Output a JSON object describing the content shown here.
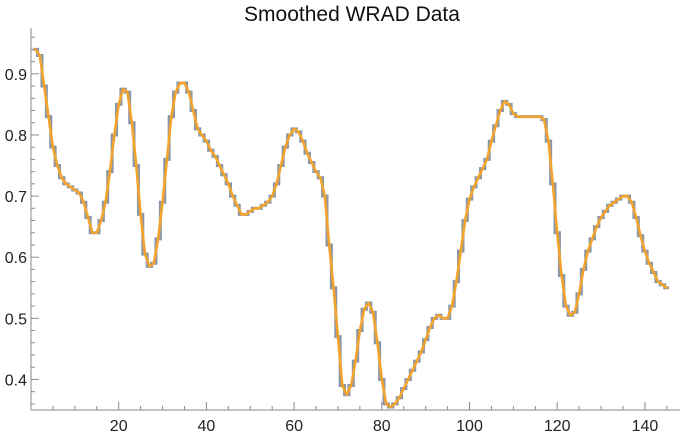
{
  "chart_data": {
    "type": "line",
    "title": "Smoothed WRAD Data",
    "xlabel": "",
    "ylabel": "",
    "xlim": [
      0,
      148
    ],
    "ylim": [
      0.35,
      0.975
    ],
    "x_ticks": [
      20,
      40,
      60,
      80,
      100,
      120,
      140
    ],
    "x_tick_labels": [
      "20",
      "40",
      "60",
      "80",
      "100",
      "120",
      "140"
    ],
    "y_ticks": [
      0.4,
      0.5,
      0.6,
      0.7,
      0.8,
      0.9
    ],
    "y_tick_labels": [
      "0.4",
      "0.5",
      "0.6",
      "0.7",
      "0.8",
      "0.9"
    ],
    "grid": false,
    "legend": "none",
    "colors": {
      "step": "#8a96a8",
      "smooth": "#f2a42c",
      "axis": "#8a8a8a"
    },
    "series": [
      {
        "style": "step",
        "x": [
          1,
          2,
          3,
          4,
          5,
          6,
          7,
          8,
          9,
          10,
          11,
          12,
          13,
          14,
          15,
          16,
          17,
          18,
          19,
          20,
          21,
          22,
          23,
          24,
          25,
          26,
          27,
          28,
          29,
          30,
          31,
          32,
          33,
          34,
          35,
          36,
          37,
          38,
          39,
          40,
          41,
          42,
          43,
          44,
          45,
          46,
          47,
          48,
          49,
          50,
          51,
          52,
          53,
          54,
          55,
          56,
          57,
          58,
          59,
          60,
          61,
          62,
          63,
          64,
          65,
          66,
          67,
          68,
          69,
          70,
          71,
          72,
          73,
          74,
          75,
          76,
          77,
          78,
          79,
          80,
          81,
          82,
          83,
          84,
          85,
          86,
          87,
          88,
          89,
          90,
          91,
          92,
          93,
          94,
          95,
          96,
          97,
          98,
          99,
          100,
          101,
          102,
          103,
          104,
          105,
          106,
          107,
          108,
          109,
          110,
          111,
          112,
          113,
          114,
          115,
          116,
          117,
          118,
          119,
          120,
          121,
          122,
          123,
          124,
          125,
          126,
          127,
          128,
          129,
          130,
          131,
          132,
          133,
          134,
          135,
          136,
          137,
          138,
          139,
          140,
          141,
          142,
          143,
          144,
          145
        ],
        "y": [
          0.94,
          0.93,
          0.88,
          0.83,
          0.78,
          0.75,
          0.73,
          0.72,
          0.715,
          0.71,
          0.705,
          0.69,
          0.665,
          0.64,
          0.64,
          0.66,
          0.69,
          0.74,
          0.8,
          0.85,
          0.875,
          0.87,
          0.82,
          0.75,
          0.67,
          0.605,
          0.585,
          0.59,
          0.63,
          0.69,
          0.76,
          0.83,
          0.87,
          0.885,
          0.885,
          0.87,
          0.84,
          0.81,
          0.8,
          0.79,
          0.775,
          0.765,
          0.75,
          0.735,
          0.72,
          0.7,
          0.685,
          0.67,
          0.67,
          0.675,
          0.68,
          0.68,
          0.685,
          0.69,
          0.7,
          0.72,
          0.75,
          0.78,
          0.8,
          0.81,
          0.805,
          0.79,
          0.77,
          0.755,
          0.74,
          0.73,
          0.7,
          0.62,
          0.55,
          0.47,
          0.39,
          0.375,
          0.39,
          0.43,
          0.48,
          0.515,
          0.525,
          0.51,
          0.46,
          0.4,
          0.36,
          0.355,
          0.36,
          0.37,
          0.385,
          0.4,
          0.415,
          0.43,
          0.445,
          0.465,
          0.485,
          0.5,
          0.505,
          0.5,
          0.5,
          0.52,
          0.56,
          0.61,
          0.66,
          0.695,
          0.715,
          0.73,
          0.745,
          0.76,
          0.79,
          0.815,
          0.84,
          0.855,
          0.85,
          0.835,
          0.83,
          0.83,
          0.83,
          0.83,
          0.83,
          0.83,
          0.825,
          0.79,
          0.72,
          0.64,
          0.57,
          0.52,
          0.505,
          0.51,
          0.54,
          0.58,
          0.61,
          0.63,
          0.65,
          0.665,
          0.675,
          0.685,
          0.69,
          0.695,
          0.7,
          0.7,
          0.69,
          0.665,
          0.635,
          0.61,
          0.59,
          0.575,
          0.56,
          0.555,
          0.55
        ]
      },
      {
        "style": "smooth",
        "x": [
          1,
          2,
          3,
          4,
          5,
          6,
          7,
          8,
          9,
          10,
          11,
          12,
          13,
          14,
          15,
          16,
          17,
          18,
          19,
          20,
          21,
          22,
          23,
          24,
          25,
          26,
          27,
          28,
          29,
          30,
          31,
          32,
          33,
          34,
          35,
          36,
          37,
          38,
          39,
          40,
          41,
          42,
          43,
          44,
          45,
          46,
          47,
          48,
          49,
          50,
          51,
          52,
          53,
          54,
          55,
          56,
          57,
          58,
          59,
          60,
          61,
          62,
          63,
          64,
          65,
          66,
          67,
          68,
          69,
          70,
          71,
          72,
          73,
          74,
          75,
          76,
          77,
          78,
          79,
          80,
          81,
          82,
          83,
          84,
          85,
          86,
          87,
          88,
          89,
          90,
          91,
          92,
          93,
          94,
          95,
          96,
          97,
          98,
          99,
          100,
          101,
          102,
          103,
          104,
          105,
          106,
          107,
          108,
          109,
          110,
          111,
          112,
          113,
          114,
          115,
          116,
          117,
          118,
          119,
          120,
          121,
          122,
          123,
          124,
          125,
          126,
          127,
          128,
          129,
          130,
          131,
          132,
          133,
          134,
          135,
          136,
          137,
          138,
          139,
          140,
          141,
          142,
          143,
          144,
          145
        ],
        "y": [
          0.94,
          0.93,
          0.88,
          0.83,
          0.78,
          0.75,
          0.73,
          0.72,
          0.715,
          0.71,
          0.705,
          0.69,
          0.665,
          0.64,
          0.64,
          0.66,
          0.69,
          0.74,
          0.8,
          0.85,
          0.875,
          0.87,
          0.82,
          0.75,
          0.67,
          0.605,
          0.585,
          0.59,
          0.63,
          0.69,
          0.76,
          0.83,
          0.87,
          0.885,
          0.885,
          0.87,
          0.84,
          0.81,
          0.8,
          0.79,
          0.775,
          0.765,
          0.75,
          0.735,
          0.72,
          0.7,
          0.685,
          0.67,
          0.67,
          0.675,
          0.68,
          0.68,
          0.685,
          0.69,
          0.7,
          0.72,
          0.75,
          0.78,
          0.8,
          0.81,
          0.805,
          0.79,
          0.77,
          0.755,
          0.74,
          0.73,
          0.7,
          0.62,
          0.55,
          0.47,
          0.39,
          0.375,
          0.39,
          0.43,
          0.48,
          0.515,
          0.525,
          0.51,
          0.46,
          0.4,
          0.36,
          0.355,
          0.36,
          0.37,
          0.385,
          0.4,
          0.415,
          0.43,
          0.445,
          0.465,
          0.485,
          0.5,
          0.505,
          0.5,
          0.5,
          0.52,
          0.56,
          0.61,
          0.66,
          0.695,
          0.715,
          0.73,
          0.745,
          0.76,
          0.79,
          0.815,
          0.84,
          0.855,
          0.85,
          0.835,
          0.83,
          0.83,
          0.83,
          0.83,
          0.83,
          0.83,
          0.825,
          0.79,
          0.72,
          0.64,
          0.57,
          0.52,
          0.505,
          0.51,
          0.54,
          0.58,
          0.61,
          0.63,
          0.65,
          0.665,
          0.675,
          0.685,
          0.69,
          0.695,
          0.7,
          0.7,
          0.69,
          0.665,
          0.635,
          0.61,
          0.59,
          0.575,
          0.56,
          0.555,
          0.55
        ]
      }
    ]
  }
}
